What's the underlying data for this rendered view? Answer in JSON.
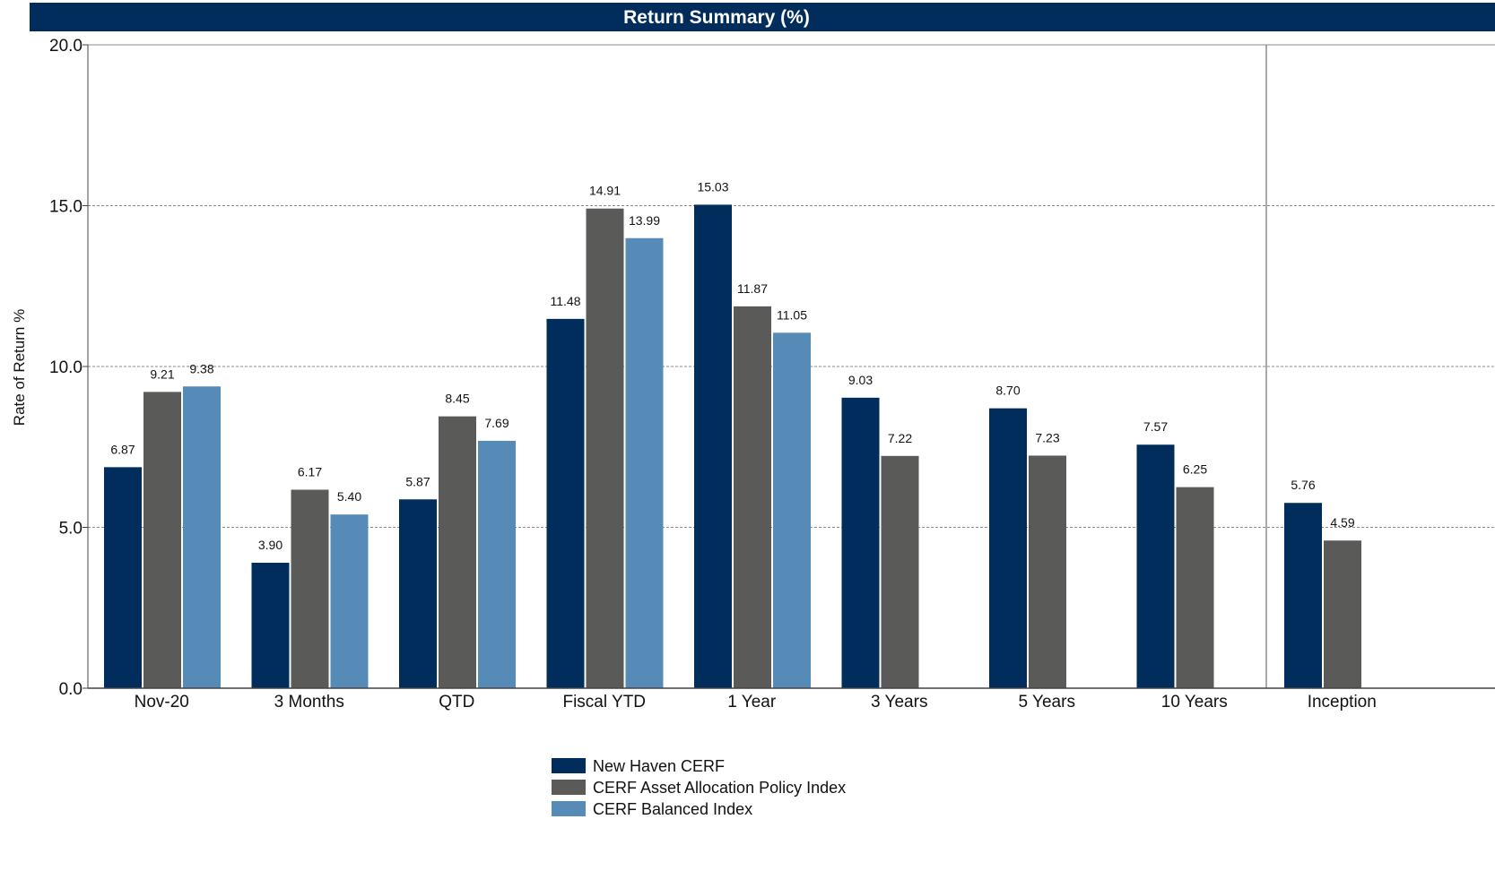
{
  "chart_data": {
    "type": "bar",
    "title": "Return Summary (%)",
    "ylabel": "Rate of Return %",
    "xlabel": "",
    "ylim": [
      0,
      20
    ],
    "yticks": [
      "0.0",
      "5.0",
      "10.0",
      "15.0",
      "20.0"
    ],
    "grid": true,
    "legend_position": "bottom-center",
    "categories": [
      "Nov-20",
      "3 Months",
      "QTD",
      "Fiscal YTD",
      "1 Year",
      "3 Years",
      "5 Years",
      "10 Years",
      "Inception"
    ],
    "series": [
      {
        "name": "New Haven CERF",
        "color": "#002d5b",
        "values": [
          6.87,
          3.9,
          5.87,
          11.48,
          15.03,
          9.03,
          8.7,
          7.57,
          5.76
        ],
        "labels": [
          "6.87",
          "3.90",
          "5.87",
          "11.48",
          "15.03",
          "9.03",
          "8.70",
          "7.57",
          "5.76"
        ]
      },
      {
        "name": "CERF Asset Allocation Policy Index",
        "color": "#5a5b59",
        "values": [
          9.21,
          6.17,
          8.45,
          14.91,
          11.87,
          7.22,
          7.23,
          6.25,
          4.59
        ],
        "labels": [
          "9.21",
          "6.17",
          "8.45",
          "14.91",
          "11.87",
          "7.22",
          "7.23",
          "6.25",
          "4.59"
        ]
      },
      {
        "name": "CERF Balanced Index",
        "color": "#568bb8",
        "values": [
          9.38,
          5.4,
          7.69,
          13.99,
          11.05,
          null,
          null,
          null,
          null
        ],
        "labels": [
          "9.38",
          "5.40",
          "7.69",
          "13.99",
          "11.05",
          "",
          "",
          "",
          ""
        ]
      }
    ],
    "separator_before_category": "Inception",
    "colors": {
      "title_bar": "#002d5b",
      "title_text": "#ffffff",
      "axis": "#444444",
      "grid": "#8a8a8a"
    }
  }
}
